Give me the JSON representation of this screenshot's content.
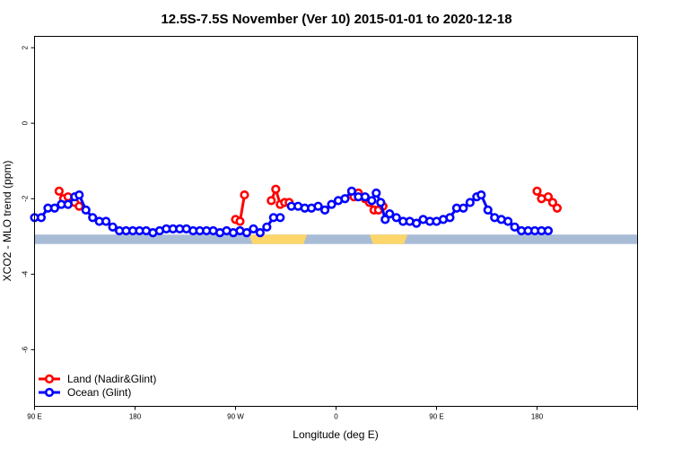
{
  "chart_data": {
    "type": "line",
    "title": "12.5S-7.5S November (Ver 10)   2015-01-01 to 2020-12-18",
    "xlabel": "Longitude (deg E)",
    "ylabel": "XCO2 - MLO trend (ppm)",
    "xlim": [
      -90,
      180
    ],
    "ylim": [
      -7.5,
      2.3
    ],
    "x_ticks": [
      {
        "value": -90,
        "label": "90 E"
      },
      {
        "value": -45,
        "label": "180"
      },
      {
        "value": 0,
        "label": "90 W"
      },
      {
        "value": 45,
        "label": "0"
      },
      {
        "value": 90,
        "label": "90 E"
      },
      {
        "value": 135,
        "label": "180"
      }
    ],
    "y_ticks": [
      {
        "value": 2,
        "label": "2"
      },
      {
        "value": 0,
        "label": "0"
      },
      {
        "value": -2,
        "label": "-2"
      },
      {
        "value": -4,
        "label": "-4"
      },
      {
        "value": -6,
        "label": "-6"
      }
    ],
    "land_ocean_strip": {
      "y_range": [
        -3.2,
        -2.95
      ],
      "ocean_color": "#a9bcd6",
      "land_color": "#fcd66a",
      "land_segments": [
        [
          6,
          32
        ],
        [
          60,
          77
        ]
      ]
    },
    "legend": {
      "position": "bottom-left"
    },
    "series": [
      {
        "name": "Land (Nadir&Glint)",
        "color": "#ff0000",
        "segments": [
          [
            [
              -79,
              -1.8
            ],
            [
              -77,
              -2.0
            ],
            [
              -75,
              -1.95
            ],
            [
              -72,
              -2.1
            ],
            [
              -70,
              -2.2
            ]
          ],
          [
            [
              0,
              -2.55
            ],
            [
              2,
              -2.6
            ],
            [
              4,
              -1.9
            ]
          ],
          [
            [
              16,
              -2.05
            ],
            [
              18,
              -1.75
            ],
            [
              20,
              -2.15
            ],
            [
              22,
              -2.1
            ],
            [
              24,
              -2.1
            ]
          ],
          [
            [
              53,
              -1.95
            ],
            [
              55,
              -1.85
            ],
            [
              58,
              -2.0
            ],
            [
              60,
              -2.1
            ],
            [
              62,
              -2.3
            ],
            [
              64,
              -2.3
            ],
            [
              66,
              -2.2
            ]
          ],
          [
            [
              135,
              -1.8
            ],
            [
              137,
              -2.0
            ],
            [
              140,
              -1.95
            ],
            [
              142,
              -2.1
            ],
            [
              144,
              -2.25
            ]
          ]
        ]
      },
      {
        "name": "Ocean (Glint)",
        "color": "#0000ff",
        "segments": [
          [
            [
              -90,
              -2.5
            ],
            [
              -87,
              -2.5
            ],
            [
              -84,
              -2.25
            ],
            [
              -81,
              -2.25
            ],
            [
              -78,
              -2.15
            ],
            [
              -75,
              -2.15
            ],
            [
              -72,
              -1.95
            ],
            [
              -70,
              -1.9
            ],
            [
              -67,
              -2.3
            ],
            [
              -64,
              -2.5
            ],
            [
              -61,
              -2.6
            ],
            [
              -58,
              -2.6
            ],
            [
              -55,
              -2.75
            ],
            [
              -52,
              -2.85
            ],
            [
              -49,
              -2.85
            ],
            [
              -46,
              -2.85
            ],
            [
              -43,
              -2.85
            ],
            [
              -40,
              -2.85
            ],
            [
              -37,
              -2.9
            ],
            [
              -34,
              -2.85
            ],
            [
              -31,
              -2.8
            ],
            [
              -28,
              -2.8
            ],
            [
              -25,
              -2.8
            ],
            [
              -22,
              -2.8
            ],
            [
              -19,
              -2.85
            ],
            [
              -16,
              -2.85
            ],
            [
              -13,
              -2.85
            ],
            [
              -10,
              -2.85
            ],
            [
              -7,
              -2.9
            ],
            [
              -4,
              -2.85
            ],
            [
              -1,
              -2.9
            ],
            [
              2,
              -2.85
            ],
            [
              5,
              -2.9
            ],
            [
              8,
              -2.8
            ],
            [
              11,
              -2.9
            ],
            [
              14,
              -2.75
            ],
            [
              17,
              -2.5
            ],
            [
              20,
              -2.5
            ]
          ],
          [
            [
              25,
              -2.2
            ],
            [
              28,
              -2.2
            ],
            [
              31,
              -2.25
            ],
            [
              34,
              -2.25
            ],
            [
              37,
              -2.2
            ],
            [
              40,
              -2.3
            ],
            [
              43,
              -2.15
            ],
            [
              46,
              -2.05
            ],
            [
              49,
              -2.0
            ],
            [
              52,
              -1.8
            ],
            [
              55,
              -1.95
            ],
            [
              58,
              -1.95
            ],
            [
              61,
              -2.05
            ],
            [
              63,
              -1.85
            ],
            [
              65,
              -2.1
            ],
            [
              67,
              -2.55
            ],
            [
              69,
              -2.4
            ],
            [
              72,
              -2.5
            ],
            [
              75,
              -2.6
            ],
            [
              78,
              -2.6
            ],
            [
              81,
              -2.65
            ],
            [
              84,
              -2.55
            ],
            [
              87,
              -2.6
            ],
            [
              90,
              -2.6
            ],
            [
              93,
              -2.55
            ],
            [
              96,
              -2.5
            ],
            [
              99,
              -2.25
            ],
            [
              102,
              -2.25
            ],
            [
              105,
              -2.1
            ],
            [
              108,
              -1.95
            ],
            [
              110,
              -1.9
            ],
            [
              113,
              -2.3
            ],
            [
              116,
              -2.5
            ],
            [
              119,
              -2.55
            ],
            [
              122,
              -2.6
            ],
            [
              125,
              -2.75
            ],
            [
              128,
              -2.85
            ],
            [
              131,
              -2.85
            ],
            [
              134,
              -2.85
            ],
            [
              137,
              -2.85
            ],
            [
              140,
              -2.85
            ]
          ]
        ]
      }
    ]
  }
}
